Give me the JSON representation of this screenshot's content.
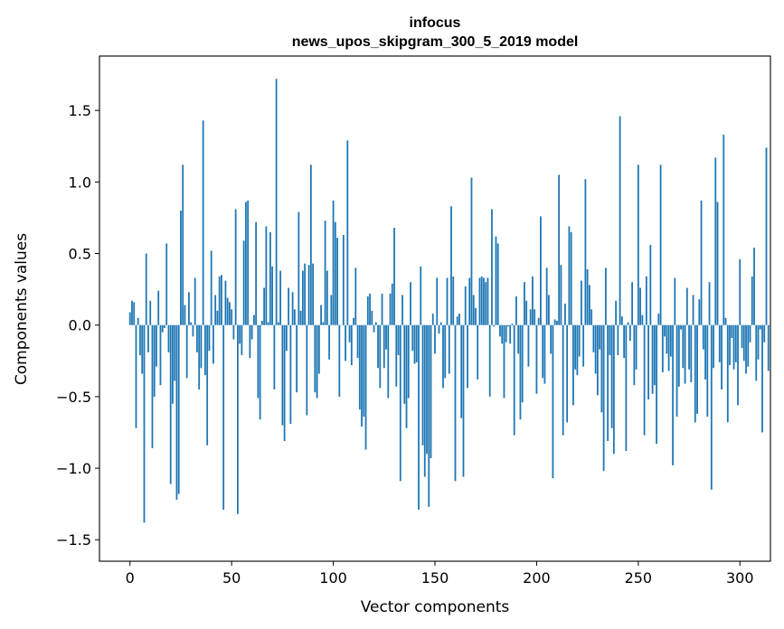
{
  "chart_data": {
    "type": "bar",
    "title": [
      "infocus",
      "news_upos_skipgram_300_5_2019 model"
    ],
    "xlabel": "Vector components",
    "ylabel": "Components values",
    "xlim": [
      -15,
      315
    ],
    "ylim": [
      -1.65,
      1.88
    ],
    "xticks": [
      0,
      50,
      100,
      150,
      200,
      250,
      300
    ],
    "xtick_labels": [
      "0",
      "50",
      "100",
      "150",
      "200",
      "250",
      "300"
    ],
    "yticks": [
      1.5,
      1.0,
      0.5,
      0.0,
      -0.5,
      -1.0,
      -1.5
    ],
    "ytick_labels": [
      "1.5",
      "1.0",
      "0.5",
      "0.0",
      "−0.5",
      "−1.0",
      "−1.5"
    ],
    "bar_color": "#1f77b4",
    "values": [
      0.09,
      0.17,
      0.16,
      -0.72,
      0.05,
      -0.21,
      -0.34,
      -1.38,
      0.5,
      -0.19,
      0.17,
      -0.86,
      -0.5,
      -0.29,
      0.24,
      -0.42,
      -0.05,
      -0.02,
      0.57,
      -0.19,
      -1.11,
      -0.55,
      -0.39,
      -1.22,
      -1.18,
      0.8,
      1.12,
      0.14,
      -0.37,
      0.23,
      0.02,
      -0.08,
      0.33,
      -0.19,
      -0.45,
      -0.3,
      1.43,
      -0.35,
      -0.84,
      -0.18,
      0.52,
      -0.27,
      0.21,
      0.1,
      0.34,
      0.35,
      -1.29,
      0.31,
      0.19,
      0.16,
      0.11,
      -0.1,
      0.81,
      -1.32,
      -0.13,
      -0.21,
      0.59,
      0.86,
      0.87,
      -0.23,
      -0.1,
      0.07,
      0.72,
      -0.51,
      -0.66,
      0.03,
      0.26,
      0.69,
      0.02,
      0.65,
      0.41,
      -0.45,
      1.72,
      0.02,
      0.38,
      -0.7,
      -0.81,
      -0.18,
      0.26,
      -0.69,
      0.23,
      0.11,
      -0.47,
      0.79,
      0.1,
      0.38,
      0.43,
      -0.63,
      0.42,
      1.12,
      0.43,
      -0.47,
      -0.51,
      -0.34,
      0.14,
      0.02,
      0.73,
      0.38,
      -0.24,
      0.21,
      0.87,
      0.72,
      0.61,
      -0.5,
      0.0,
      0.63,
      -0.25,
      1.29,
      -0.12,
      -0.28,
      0.05,
      0.4,
      -0.23,
      -0.59,
      -0.71,
      -0.64,
      -0.87,
      0.2,
      0.22,
      0.1,
      -0.05,
      0.02,
      -0.3,
      -0.44,
      0.22,
      -0.3,
      -0.17,
      -0.51,
      0.22,
      0.29,
      0.68,
      -0.43,
      -0.21,
      -1.09,
      0.21,
      -0.55,
      -0.72,
      -0.51,
      0.3,
      -0.18,
      -0.27,
      -0.26,
      -1.29,
      0.41,
      -0.84,
      -1.06,
      -0.9,
      -1.27,
      -0.93,
      0.08,
      -0.2,
      0.33,
      -0.06,
      0.02,
      -0.44,
      -0.37,
      0.33,
      -0.34,
      0.83,
      0.34,
      -1.09,
      0.06,
      0.08,
      -0.65,
      -1.06,
      0.27,
      -0.44,
      0.33,
      1.03,
      0.21,
      0.12,
      -0.38,
      0.33,
      0.34,
      0.33,
      0.3,
      0.33,
      -0.5,
      0.81,
      -0.01,
      0.62,
      0.57,
      -0.08,
      -0.13,
      -0.51,
      -0.12,
      -0.01,
      -0.13,
      0.01,
      -0.77,
      0.2,
      -0.2,
      -0.66,
      -0.54,
      0.3,
      0.17,
      -0.29,
      0.11,
      0.34,
      0.11,
      -0.48,
      0.05,
      0.76,
      -0.37,
      -0.41,
      0.4,
      0.21,
      -0.2,
      -1.07,
      0.04,
      0.03,
      1.05,
      0.42,
      -0.77,
      0.15,
      -0.68,
      0.69,
      0.65,
      -0.56,
      -0.31,
      -0.35,
      -0.22,
      0.31,
      -0.29,
      1.02,
      0.39,
      0.28,
      0.11,
      -0.19,
      -0.34,
      -0.49,
      -0.17,
      -0.61,
      -1.02,
      0.4,
      -0.81,
      -0.21,
      -0.72,
      -0.9,
      0.17,
      -0.21,
      1.46,
      0.06,
      -0.23,
      -0.88,
      0.02,
      -0.11,
      0.3,
      -0.42,
      -0.31,
      1.12,
      0.26,
      0.07,
      -0.77,
      0.34,
      -0.52,
      0.56,
      -0.48,
      -0.42,
      -0.83,
      0.08,
      1.12,
      -0.33,
      -0.08,
      -0.2,
      -0.32,
      -0.22,
      -0.98,
      0.33,
      -0.64,
      -0.43,
      -0.03,
      -0.3,
      -0.41,
      0.26,
      -0.31,
      -0.4,
      0.21,
      -0.68,
      -0.62,
      0.18,
      0.87,
      -0.17,
      -0.38,
      -0.64,
      0.3,
      -1.15,
      -0.3,
      1.17,
      0.86,
      -0.26,
      -0.45,
      1.33,
      0.05,
      -0.68,
      -0.28,
      -0.09,
      -0.31,
      -0.26,
      -0.56,
      0.46,
      -0.16,
      -0.25,
      -0.34,
      -0.29,
      -0.12,
      0.34,
      0.54,
      -0.39,
      -0.24,
      -0.03,
      -0.75,
      -0.12,
      1.24,
      -0.32
    ]
  }
}
